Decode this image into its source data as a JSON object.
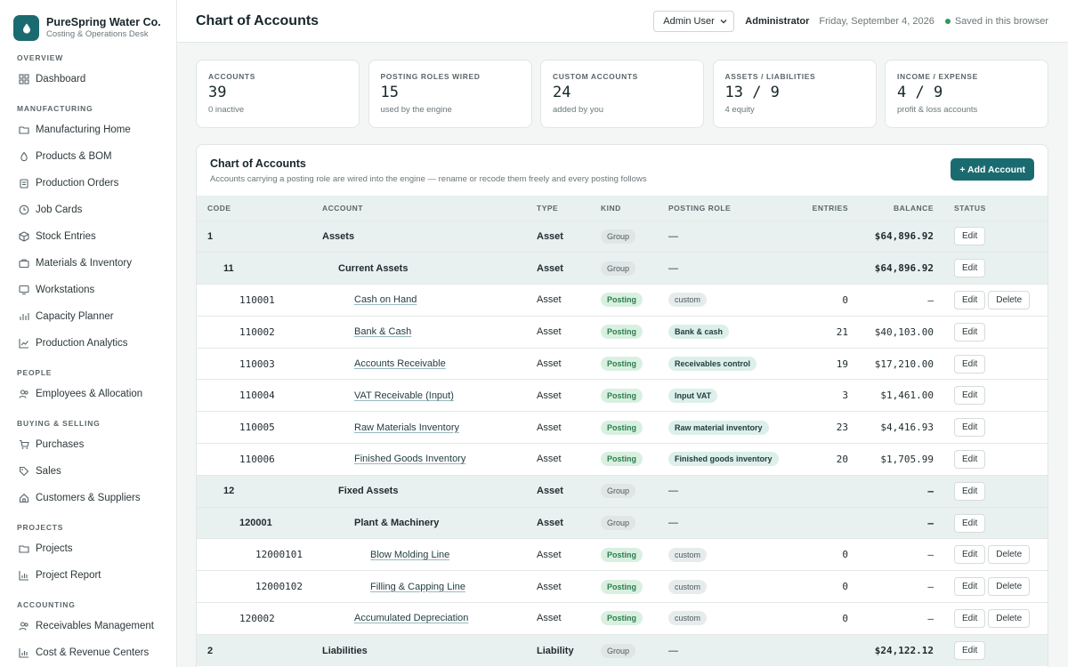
{
  "brand": {
    "name": "PureSpring Water Co.",
    "subtitle": "Costing & Operations Desk"
  },
  "sidebar": {
    "sections": [
      {
        "label": "OVERVIEW",
        "items": [
          {
            "label": "Dashboard",
            "icon": "grid-icon"
          }
        ]
      },
      {
        "label": "MANUFACTURING",
        "items": [
          {
            "label": "Manufacturing Home",
            "icon": "folder-icon"
          },
          {
            "label": "Products & BOM",
            "icon": "drop-icon"
          },
          {
            "label": "Production Orders",
            "icon": "clipboard-icon"
          },
          {
            "label": "Job Cards",
            "icon": "clock-icon"
          },
          {
            "label": "Stock Entries",
            "icon": "box-icon"
          },
          {
            "label": "Materials & Inventory",
            "icon": "briefcase-icon"
          },
          {
            "label": "Workstations",
            "icon": "monitor-icon"
          },
          {
            "label": "Capacity Planner",
            "icon": "bars-icon"
          },
          {
            "label": "Production Analytics",
            "icon": "trend-icon"
          }
        ]
      },
      {
        "label": "PEOPLE",
        "items": [
          {
            "label": "Employees & Allocation",
            "icon": "people-icon"
          }
        ]
      },
      {
        "label": "BUYING & SELLING",
        "items": [
          {
            "label": "Purchases",
            "icon": "cart-icon"
          },
          {
            "label": "Sales",
            "icon": "tag-icon"
          },
          {
            "label": "Customers & Suppliers",
            "icon": "home-icon"
          }
        ]
      },
      {
        "label": "PROJECTS",
        "items": [
          {
            "label": "Projects",
            "icon": "folder-icon"
          },
          {
            "label": "Project Report",
            "icon": "chart-icon"
          }
        ]
      },
      {
        "label": "ACCOUNTING",
        "items": [
          {
            "label": "Receivables Management",
            "icon": "people-icon"
          },
          {
            "label": "Cost & Revenue Centers",
            "icon": "chart-icon"
          }
        ]
      }
    ]
  },
  "header": {
    "title": "Chart of Accounts",
    "user_select": "Admin User",
    "role": "Administrator",
    "date": "Friday, September 4, 2026",
    "saved": "Saved in this browser"
  },
  "kpis": [
    {
      "label": "ACCOUNTS",
      "value": "39",
      "sub": "0 inactive"
    },
    {
      "label": "POSTING ROLES WIRED",
      "value": "15",
      "sub": "used by the engine"
    },
    {
      "label": "CUSTOM ACCOUNTS",
      "value": "24",
      "sub": "added by you"
    },
    {
      "label": "ASSETS / LIABILITIES",
      "value": "13 / 9",
      "sub": "4 equity"
    },
    {
      "label": "INCOME / EXPENSE",
      "value": "4 / 9",
      "sub": "profit & loss accounts"
    }
  ],
  "panel": {
    "title": "Chart of Accounts",
    "subtitle": "Accounts carrying a posting role are wired into the engine — rename or recode them freely and every posting follows",
    "add_label": "+ Add Account"
  },
  "table": {
    "headers": {
      "code": "CODE",
      "account": "ACCOUNT",
      "type": "TYPE",
      "kind": "KIND",
      "role": "POSTING ROLE",
      "entries": "ENTRIES",
      "balance": "BALANCE",
      "status": "STATUS"
    },
    "edit_label": "Edit",
    "delete_label": "Delete",
    "rows": [
      {
        "level": 0,
        "group": true,
        "code": "1",
        "account": "Assets",
        "type": "Asset",
        "kind": "Group",
        "role": "—",
        "entries": "",
        "balance": "$64,896.92",
        "delete": false
      },
      {
        "level": 1,
        "group": true,
        "code": "11",
        "account": "Current Assets",
        "type": "Asset",
        "kind": "Group",
        "role": "—",
        "entries": "",
        "balance": "$64,896.92",
        "delete": false
      },
      {
        "level": 2,
        "group": false,
        "code": "110001",
        "account": "Cash on Hand",
        "type": "Asset",
        "kind": "Posting",
        "role": "custom",
        "role_custom": true,
        "entries": "0",
        "balance": "—",
        "delete": true
      },
      {
        "level": 2,
        "group": false,
        "code": "110002",
        "account": "Bank & Cash",
        "type": "Asset",
        "kind": "Posting",
        "role": "Bank & cash",
        "role_custom": false,
        "entries": "21",
        "balance": "$40,103.00",
        "delete": false
      },
      {
        "level": 2,
        "group": false,
        "code": "110003",
        "account": "Accounts Receivable",
        "type": "Asset",
        "kind": "Posting",
        "role": "Receivables control",
        "role_custom": false,
        "entries": "19",
        "balance": "$17,210.00",
        "delete": false
      },
      {
        "level": 2,
        "group": false,
        "code": "110004",
        "account": "VAT Receivable (Input)",
        "type": "Asset",
        "kind": "Posting",
        "role": "Input VAT",
        "role_custom": false,
        "entries": "3",
        "balance": "$1,461.00",
        "delete": false
      },
      {
        "level": 2,
        "group": false,
        "code": "110005",
        "account": "Raw Materials Inventory",
        "type": "Asset",
        "kind": "Posting",
        "role": "Raw material inventory",
        "role_custom": false,
        "entries": "23",
        "balance": "$4,416.93",
        "delete": false
      },
      {
        "level": 2,
        "group": false,
        "code": "110006",
        "account": "Finished Goods Inventory",
        "type": "Asset",
        "kind": "Posting",
        "role": "Finished goods inventory",
        "role_custom": false,
        "entries": "20",
        "balance": "$1,705.99",
        "delete": false
      },
      {
        "level": 1,
        "group": true,
        "code": "12",
        "account": "Fixed Assets",
        "type": "Asset",
        "kind": "Group",
        "role": "—",
        "entries": "",
        "balance": "—",
        "delete": false
      },
      {
        "level": 2,
        "group": true,
        "code": "120001",
        "account": "Plant & Machinery",
        "type": "Asset",
        "kind": "Group",
        "role": "—",
        "entries": "",
        "balance": "—",
        "delete": false
      },
      {
        "level": 3,
        "group": false,
        "code": "12000101",
        "account": "Blow Molding Line",
        "type": "Asset",
        "kind": "Posting",
        "role": "custom",
        "role_custom": true,
        "entries": "0",
        "balance": "—",
        "delete": true
      },
      {
        "level": 3,
        "group": false,
        "code": "12000102",
        "account": "Filling & Capping Line",
        "type": "Asset",
        "kind": "Posting",
        "role": "custom",
        "role_custom": true,
        "entries": "0",
        "balance": "—",
        "delete": true
      },
      {
        "level": 2,
        "group": false,
        "code": "120002",
        "account": "Accumulated Depreciation",
        "type": "Asset",
        "kind": "Posting",
        "role": "custom",
        "role_custom": true,
        "entries": "0",
        "balance": "—",
        "delete": true
      },
      {
        "level": 0,
        "group": true,
        "code": "2",
        "account": "Liabilities",
        "type": "Liability",
        "kind": "Group",
        "role": "—",
        "entries": "",
        "balance": "$24,122.12",
        "delete": false
      }
    ]
  }
}
